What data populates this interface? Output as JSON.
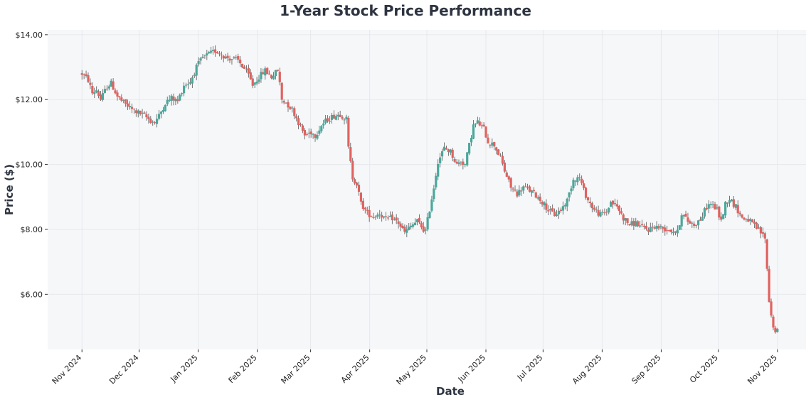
{
  "chart_data": {
    "type": "candlestick",
    "title": "1-Year Stock Price Performance",
    "xlabel": "Date",
    "ylabel": "Price ($)",
    "ylim": [
      4.3,
      14.15
    ],
    "grid": true,
    "colors": {
      "up": "#4aa79a",
      "down": "#e0625f",
      "plot_bg": "#f6f7f9",
      "grid": "#e6e8ec",
      "wick": "#555555"
    },
    "y_ticks": [
      {
        "value": 6,
        "label": "$6.00"
      },
      {
        "value": 8,
        "label": "$8.00"
      },
      {
        "value": 10,
        "label": "$10.00"
      },
      {
        "value": 12,
        "label": "$12.00"
      },
      {
        "value": 14,
        "label": "$14.00"
      }
    ],
    "x_ticks": [
      {
        "day": 0,
        "label": "Nov 2024"
      },
      {
        "day": 30,
        "label": "Dec 2024"
      },
      {
        "day": 61,
        "label": "Jan 2025"
      },
      {
        "day": 92,
        "label": "Feb 2025"
      },
      {
        "day": 120,
        "label": "Mar 2025"
      },
      {
        "day": 151,
        "label": "Apr 2025"
      },
      {
        "day": 181,
        "label": "May 2025"
      },
      {
        "day": 212,
        "label": "Jun 2025"
      },
      {
        "day": 242,
        "label": "Jul 2025"
      },
      {
        "day": 273,
        "label": "Aug 2025"
      },
      {
        "day": 304,
        "label": "Sep 2025"
      },
      {
        "day": 334,
        "label": "Oct 2025"
      },
      {
        "day": 365,
        "label": "Nov 2025"
      }
    ],
    "x_range_days": [
      -18,
      380
    ],
    "price_path": [
      [
        0,
        12.8
      ],
      [
        3,
        12.6
      ],
      [
        5,
        12.2
      ],
      [
        7,
        12.3
      ],
      [
        9,
        12.0
      ],
      [
        12,
        12.4
      ],
      [
        14,
        12.5
      ],
      [
        17,
        12.1
      ],
      [
        20,
        11.9
      ],
      [
        24,
        11.7
      ],
      [
        27,
        11.6
      ],
      [
        30,
        11.5
      ],
      [
        33,
        11.35
      ],
      [
        35,
        11.3
      ],
      [
        37,
        11.5
      ],
      [
        40,
        11.9
      ],
      [
        43,
        12.05
      ],
      [
        46,
        11.95
      ],
      [
        49,
        12.45
      ],
      [
        52,
        12.55
      ],
      [
        55,
        13.0
      ],
      [
        58,
        13.3
      ],
      [
        61,
        13.4
      ],
      [
        64,
        13.5
      ],
      [
        66,
        13.45
      ],
      [
        69,
        13.3
      ],
      [
        73,
        13.25
      ],
      [
        75,
        13.2
      ],
      [
        78,
        12.95
      ],
      [
        80,
        12.75
      ],
      [
        82,
        12.45
      ],
      [
        85,
        12.7
      ],
      [
        88,
        12.9
      ],
      [
        91,
        12.7
      ],
      [
        94,
        12.9
      ],
      [
        95,
        12.5
      ],
      [
        96,
        12.0
      ],
      [
        98,
        11.9
      ],
      [
        101,
        11.7
      ],
      [
        104,
        11.3
      ],
      [
        107,
        10.9
      ],
      [
        110,
        11.0
      ],
      [
        112,
        10.9
      ],
      [
        115,
        11.2
      ],
      [
        118,
        11.4
      ],
      [
        121,
        11.5
      ],
      [
        124,
        11.55
      ],
      [
        127,
        11.4
      ],
      [
        128,
        10.5
      ],
      [
        130,
        9.6
      ],
      [
        132,
        9.4
      ],
      [
        134,
        8.8
      ],
      [
        137,
        8.5
      ],
      [
        140,
        8.4
      ],
      [
        143,
        8.5
      ],
      [
        146,
        8.3
      ],
      [
        149,
        8.35
      ],
      [
        152,
        8.2
      ],
      [
        155,
        7.9
      ],
      [
        158,
        8.1
      ],
      [
        161,
        8.25
      ],
      [
        164,
        8.0
      ],
      [
        165,
        7.95
      ],
      [
        169,
        9.3
      ],
      [
        171,
        10.1
      ],
      [
        174,
        10.5
      ],
      [
        177,
        10.4
      ],
      [
        180,
        10.0
      ],
      [
        182,
        10.1
      ],
      [
        184,
        10.0
      ],
      [
        188,
        11.2
      ],
      [
        190,
        11.3
      ],
      [
        193,
        11.1
      ],
      [
        195,
        10.7
      ],
      [
        198,
        10.6
      ],
      [
        201,
        10.2
      ],
      [
        203,
        9.8
      ],
      [
        206,
        9.3
      ],
      [
        209,
        9.1
      ],
      [
        212,
        9.3
      ],
      [
        215,
        9.2
      ],
      [
        218,
        9.05
      ],
      [
        221,
        8.85
      ],
      [
        224,
        8.6
      ],
      [
        227,
        8.45
      ],
      [
        230,
        8.6
      ],
      [
        233,
        8.9
      ],
      [
        236,
        9.55
      ],
      [
        239,
        9.6
      ],
      [
        241,
        9.2
      ],
      [
        243,
        8.9
      ],
      [
        246,
        8.6
      ],
      [
        249,
        8.45
      ],
      [
        252,
        8.55
      ],
      [
        254,
        8.85
      ],
      [
        257,
        8.7
      ],
      [
        260,
        8.35
      ],
      [
        263,
        8.15
      ],
      [
        266,
        8.2
      ],
      [
        269,
        8.05
      ],
      [
        272,
        8.0
      ],
      [
        275,
        8.1
      ],
      [
        278,
        8.05
      ],
      [
        281,
        8.0
      ],
      [
        284,
        7.95
      ],
      [
        286,
        7.9
      ],
      [
        288,
        8.5
      ],
      [
        291,
        8.25
      ],
      [
        294,
        8.15
      ],
      [
        297,
        8.3
      ],
      [
        300,
        8.7
      ],
      [
        302,
        8.8
      ],
      [
        305,
        8.6
      ],
      [
        307,
        8.25
      ],
      [
        309,
        8.8
      ],
      [
        311,
        8.95
      ],
      [
        314,
        8.7
      ],
      [
        317,
        8.35
      ],
      [
        320,
        8.3
      ],
      [
        323,
        8.1
      ],
      [
        326,
        7.9
      ],
      [
        328,
        7.75
      ],
      [
        330,
        5.8
      ],
      [
        332,
        4.95
      ],
      [
        334,
        4.85
      ]
    ],
    "x_scale_note": "price_path x values are compressed trading-day positions mapped onto the day axis"
  }
}
